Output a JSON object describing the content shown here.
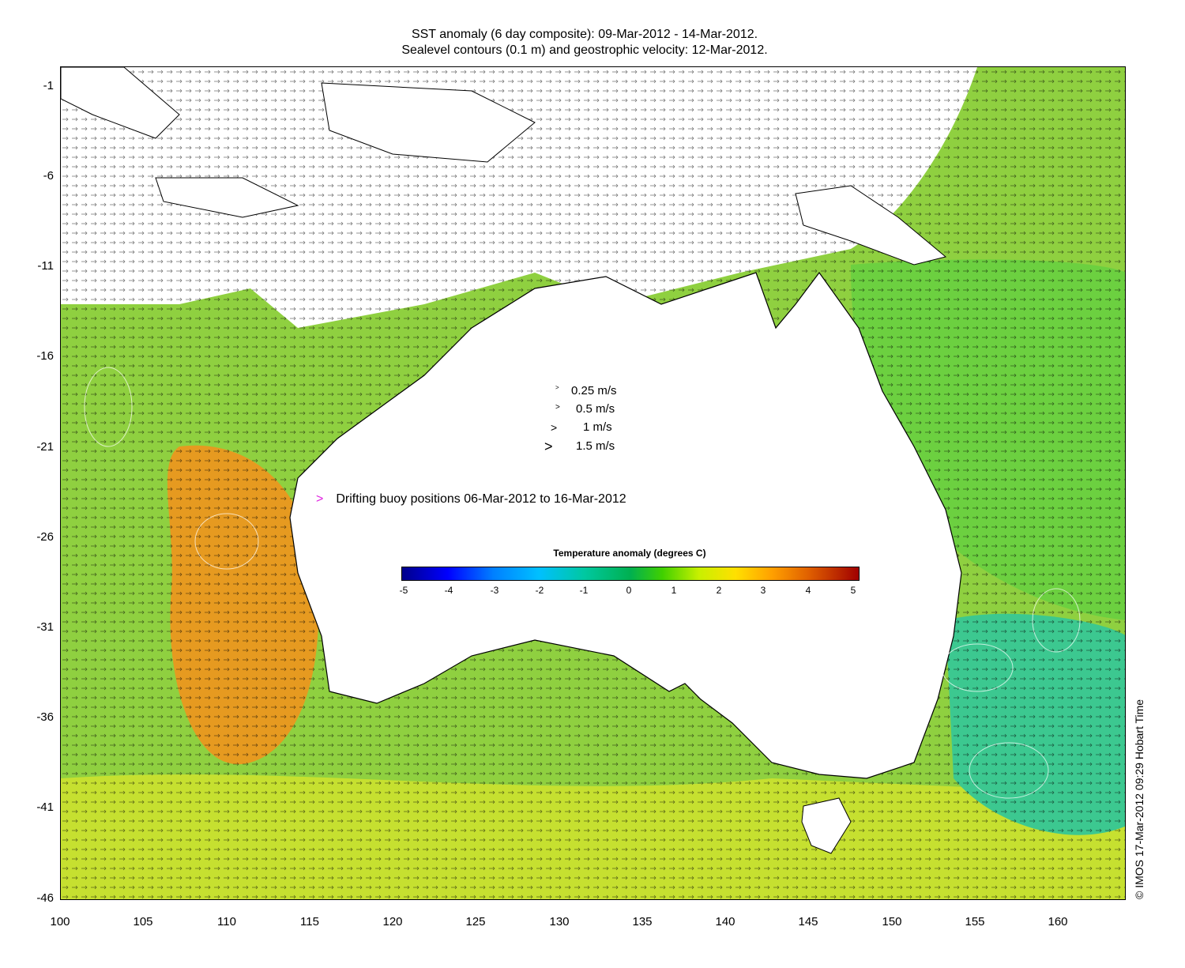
{
  "title_line1": "SST anomaly (6 day composite): 09-Mar-2012 - 14-Mar-2012.",
  "title_line2": "Sealevel contours (0.1 m) and geostrophic velocity: 12-Mar-2012.",
  "y_ticks": [
    "-1",
    "-6",
    "-11",
    "-16",
    "-21",
    "-26",
    "-31",
    "-36",
    "-41",
    "-46"
  ],
  "x_ticks": [
    "100",
    "105",
    "110",
    "115",
    "120",
    "125",
    "130",
    "135",
    "140",
    "145",
    "150",
    "155",
    "160"
  ],
  "velocity_legend": [
    "0.25 m/s",
    "0.5 m/s",
    "1 m/s",
    "1.5 m/s"
  ],
  "buoy_legend": {
    "marker": ">",
    "label": "Drifting buoy positions 06-Mar-2012 to 16-Mar-2012",
    "color": "#e020e0"
  },
  "colorbar": {
    "title": "Temperature anomaly (degrees C)",
    "ticks": [
      "-5",
      "-4",
      "-3",
      "-2",
      "-1",
      "0",
      "1",
      "2",
      "3",
      "4",
      "5"
    ],
    "range": [
      -5,
      5
    ]
  },
  "credit": "© IMOS 17-Mar-2012 09:29 Hobart Time",
  "map": {
    "lon_range": [
      100,
      164
    ],
    "lat_range": [
      -46,
      0
    ],
    "land_color": "#ffffff",
    "ocean_warm_color": "#e08a20",
    "ocean_neutral_color": "#9ad620",
    "ocean_cool_color": "#30b8a0"
  }
}
